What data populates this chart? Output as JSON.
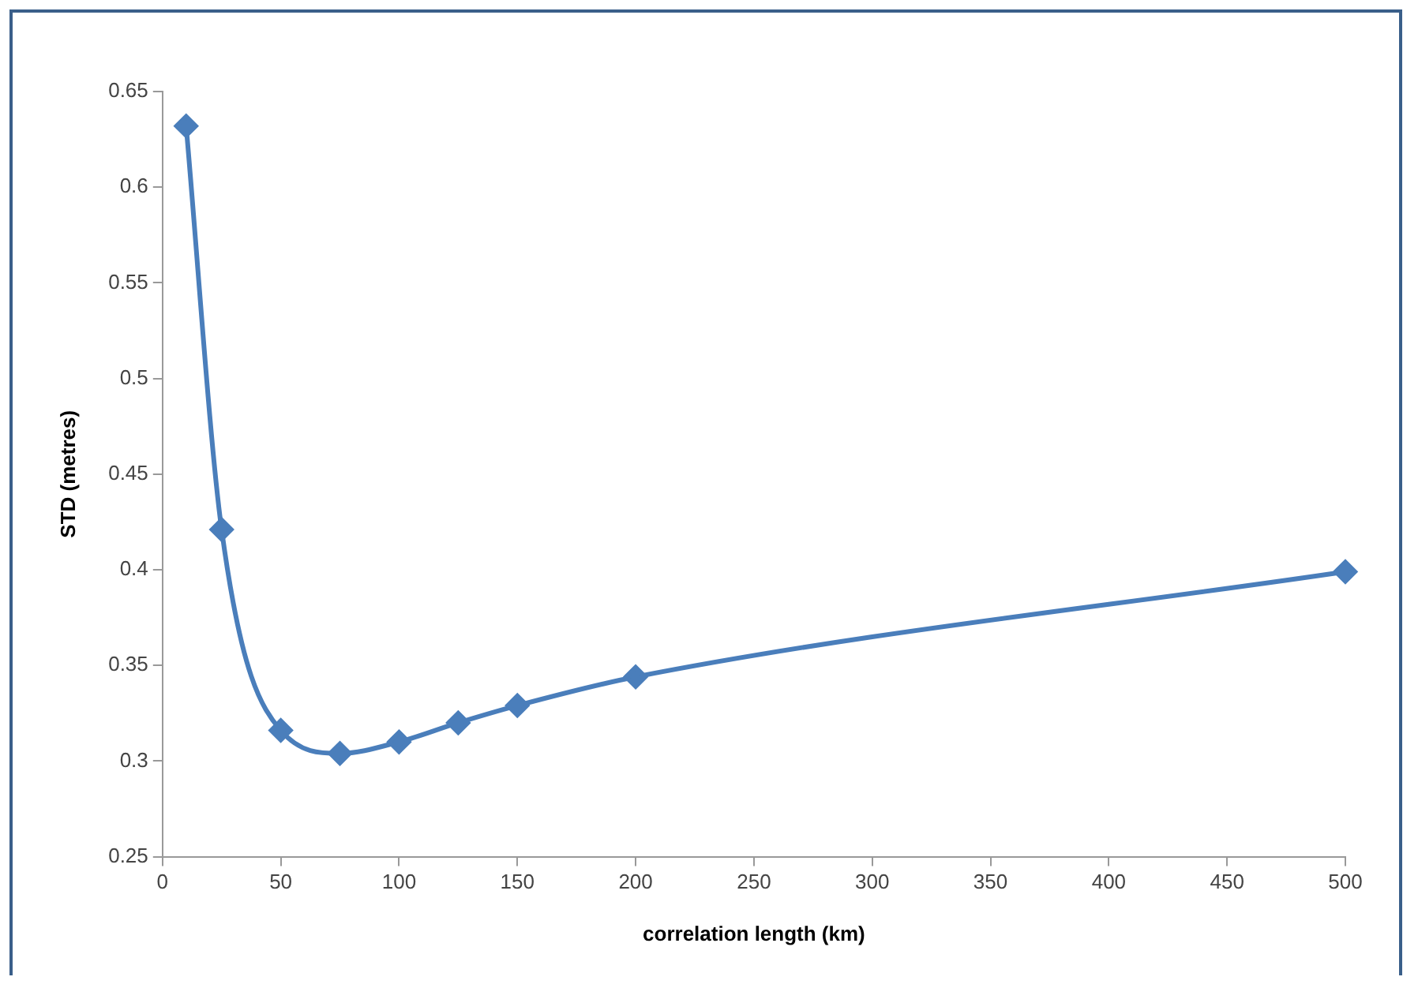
{
  "chart_data": {
    "type": "line",
    "xlabel": "correlation length (km)",
    "ylabel": "STD (metres)",
    "x": [
      10,
      25,
      50,
      75,
      100,
      125,
      150,
      200,
      500
    ],
    "series": [
      {
        "color": "#4a7ebb",
        "values": [
          0.632,
          0.421,
          0.316,
          0.304,
          0.31,
          0.32,
          0.329,
          0.344,
          0.399
        ]
      }
    ],
    "xlim": [
      0,
      500
    ],
    "xticks": [
      0,
      50,
      100,
      150,
      200,
      250,
      300,
      350,
      400,
      450,
      500
    ],
    "ylim": [
      0.25,
      0.65
    ],
    "yticks": [
      0.25,
      0.3,
      0.35,
      0.4,
      0.45,
      0.5,
      0.55,
      0.6,
      0.65
    ],
    "grid": false,
    "legend": false,
    "marker": "diamond",
    "line_style": "solid"
  }
}
